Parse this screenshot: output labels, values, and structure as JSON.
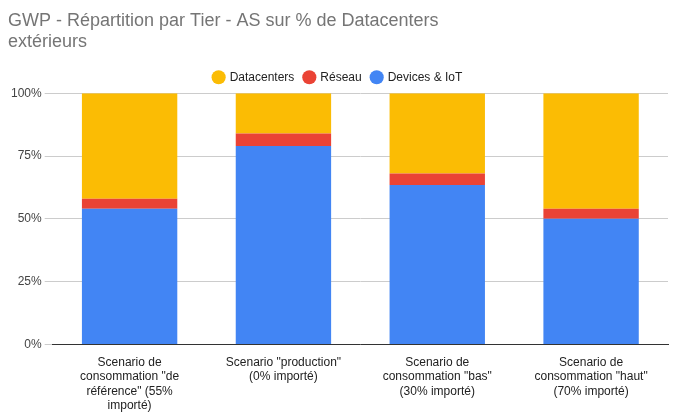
{
  "chart_data": {
    "type": "bar",
    "title": "GWP - Répartition par Tier - AS sur % de Datacenters extérieurs",
    "categories": [
      "Scenario de consommation \"de référence\" (55% importé)",
      "Scenario \"production\" (0% importé)",
      "Scenario de consommation \"bas\" (30% importé)",
      "Scenario de consommation \"haut\" (70% importé)"
    ],
    "series": [
      {
        "name": "Devices & IoT",
        "color": "#4285f4",
        "values": [
          54,
          79,
          63.5,
          50
        ]
      },
      {
        "name": "Réseau",
        "color": "#ea4335",
        "values": [
          4,
          5,
          4.5,
          4
        ]
      },
      {
        "name": "Datacenters",
        "color": "#fbbc04",
        "values": [
          42,
          16,
          32,
          46
        ]
      }
    ],
    "stacked": true,
    "ylim": [
      0,
      100
    ],
    "yticks": [
      {
        "value": 0,
        "label": "0%"
      },
      {
        "value": 25,
        "label": "25%"
      },
      {
        "value": 50,
        "label": "50%"
      },
      {
        "value": 75,
        "label": "75%"
      },
      {
        "value": 100,
        "label": "100%"
      }
    ],
    "grid": true,
    "legend": "top"
  }
}
